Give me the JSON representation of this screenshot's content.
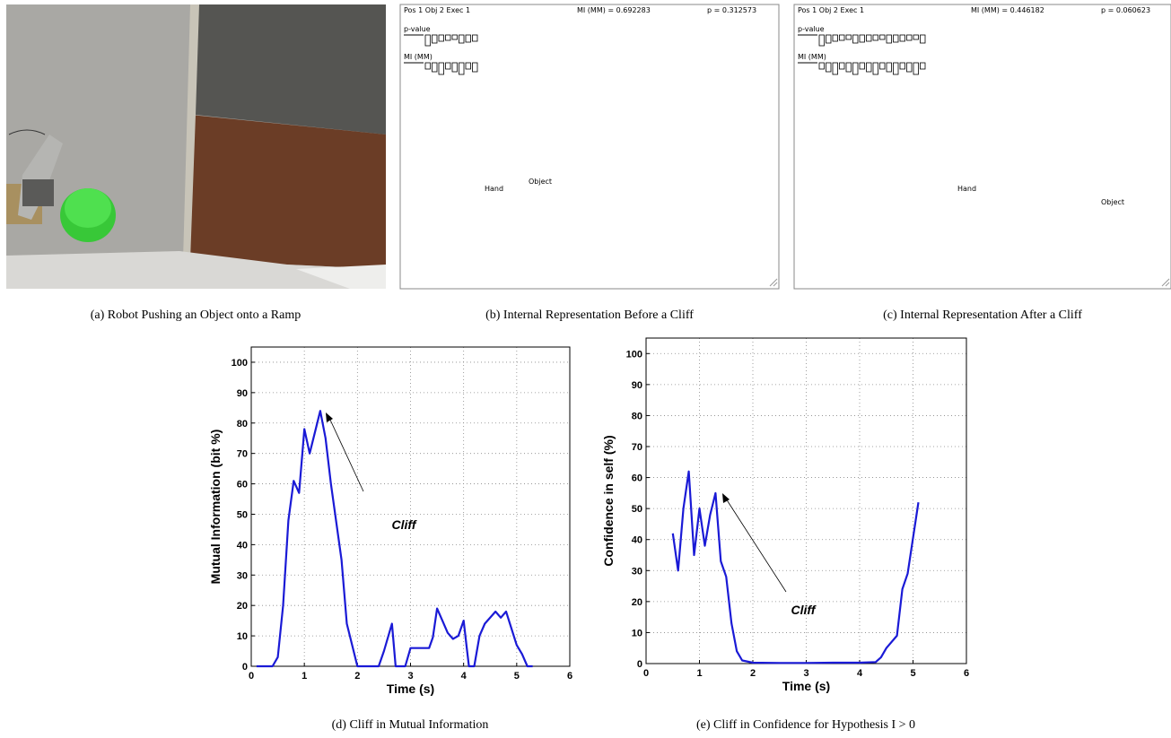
{
  "panels": [
    {
      "caption": "(a) Robot Pushing an Object onto a Ramp"
    },
    {
      "caption": "(b) Internal Representation Before a Cliff",
      "header": "Pos 1 Obj 2 Exec 1",
      "mi": "MI (MM) = 0.692283",
      "p": "p = 0.312573",
      "row_labels": [
        "p-value",
        "MI (MM)"
      ],
      "hand": "Hand",
      "object": "Object"
    },
    {
      "caption": "(c) Internal Representation After a Cliff",
      "header": "Pos 1 Obj 2 Exec 1",
      "mi": "MI (MM) = 0.446182",
      "p": "p = 0.060623",
      "row_labels": [
        "p-value",
        "MI (MM)"
      ],
      "hand": "Hand",
      "object": "Object"
    }
  ],
  "chart_data": [
    {
      "type": "line",
      "caption": "(d) Cliff in Mutual Information",
      "x_label": "Time (s)",
      "y_label": "Mutual Information (bit %)",
      "annotation": "Cliff",
      "xlim": [
        0,
        6
      ],
      "ylim": [
        0,
        105
      ],
      "xticks": [
        0,
        1,
        2,
        3,
        4,
        5,
        6
      ],
      "yticks": [
        0,
        10,
        20,
        30,
        40,
        50,
        60,
        70,
        80,
        90,
        100
      ],
      "grid": true,
      "color": "#1a1ad6",
      "x": [
        0.1,
        0.4,
        0.5,
        0.6,
        0.7,
        0.8,
        0.9,
        1.0,
        1.1,
        1.3,
        1.4,
        1.5,
        1.7,
        1.8,
        2.0,
        2.4,
        2.5,
        2.65,
        2.72,
        2.9,
        3.0,
        3.35,
        3.42,
        3.5,
        3.6,
        3.7,
        3.8,
        3.9,
        4.0,
        4.06,
        4.1,
        4.2,
        4.3,
        4.4,
        4.6,
        4.7,
        4.8,
        5.0,
        5.1,
        5.2,
        5.3
      ],
      "values": [
        0,
        0,
        3,
        20,
        48,
        61,
        57,
        78,
        70,
        84,
        75,
        60,
        35,
        14,
        0,
        0,
        5,
        14,
        0,
        0,
        6,
        6,
        9.5,
        19,
        15,
        11,
        9,
        10,
        15,
        6,
        0,
        0,
        10,
        14,
        18,
        16,
        18,
        7,
        4,
        0,
        0
      ]
    },
    {
      "type": "line",
      "caption": "(e) Cliff in Confidence for Hypothesis I > 0",
      "x_label": "Time (s)",
      "y_label": "Confidence in self (%)",
      "annotation": "Cliff",
      "xlim": [
        0,
        6
      ],
      "ylim": [
        0,
        105
      ],
      "xticks": [
        0,
        1,
        2,
        3,
        4,
        5,
        6
      ],
      "yticks": [
        0,
        10,
        20,
        30,
        40,
        50,
        60,
        70,
        80,
        90,
        100
      ],
      "grid": true,
      "color": "#1a1ad6",
      "x": [
        0.5,
        0.6,
        0.7,
        0.8,
        0.9,
        1.0,
        1.1,
        1.2,
        1.3,
        1.4,
        1.5,
        1.6,
        1.7,
        1.8,
        2.0,
        2.5,
        3.0,
        3.5,
        4.0,
        4.3,
        4.4,
        4.5,
        4.7,
        4.8,
        4.9,
        5.1
      ],
      "values": [
        42,
        30,
        50,
        62,
        35,
        50,
        38,
        48,
        55,
        33,
        28,
        13,
        4,
        1,
        0.3,
        0.2,
        0.2,
        0.3,
        0.3,
        0.5,
        2,
        5,
        9,
        24,
        29,
        52
      ]
    }
  ]
}
